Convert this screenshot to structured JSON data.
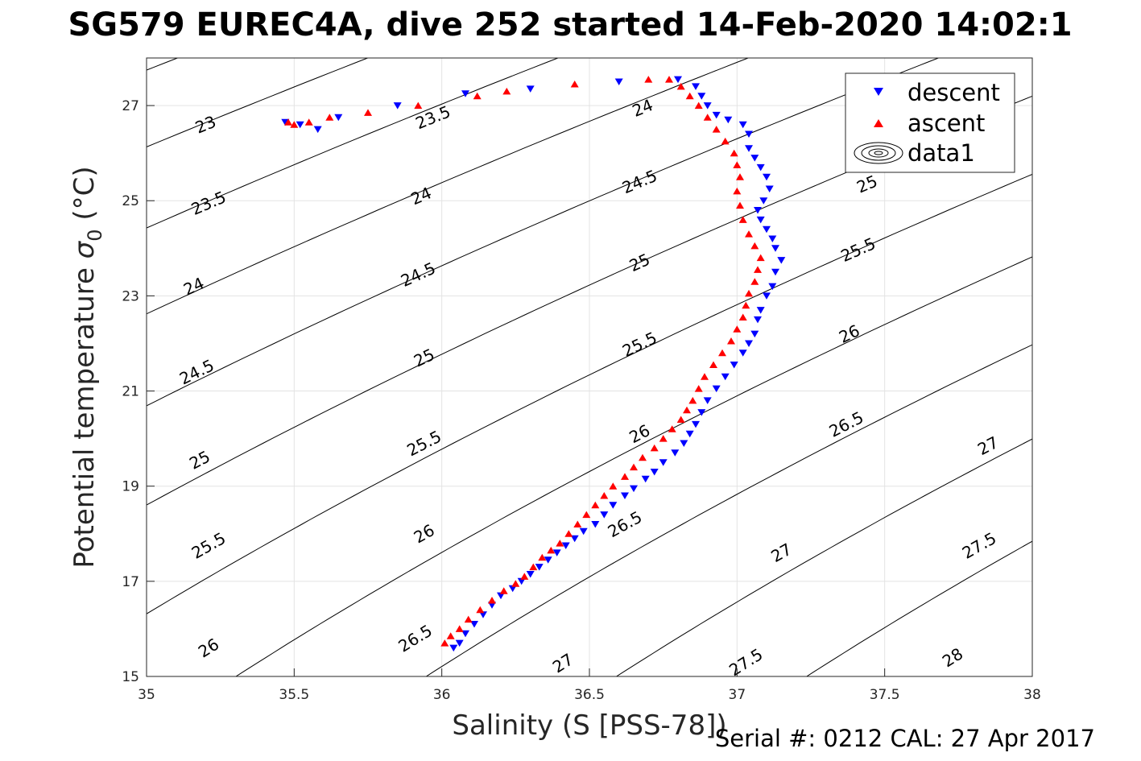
{
  "chart_data": {
    "type": "scatter",
    "title": "SG579 EUREC4A, dive 252 started 14-Feb-2020 14:02:1",
    "xlabel": "Salinity (S [PSS-78])",
    "ylabel_main": "Potential temperature ",
    "ylabel_sigma": "σ",
    "ylabel_sub": "0",
    "ylabel_unit": " (°C)",
    "footer": "Serial #: 0212  CAL: 27 Apr 2017",
    "xlim": [
      35,
      38
    ],
    "ylim": [
      15,
      28
    ],
    "grid": true,
    "x_ticks": [
      35,
      35.5,
      36,
      36.5,
      37,
      37.5,
      38
    ],
    "y_ticks": [
      15,
      17,
      19,
      21,
      23,
      25,
      27
    ],
    "x_tick_labels": [
      "35",
      "35.5",
      "36",
      "36.5",
      "37",
      "37.5",
      "38"
    ],
    "y_tick_labels": [
      "15",
      "17",
      "19",
      "21",
      "23",
      "25",
      "27"
    ],
    "legend": {
      "placement": "top-right",
      "entries": [
        "descent",
        "ascent",
        "data1"
      ]
    },
    "series": [
      {
        "name": "descent",
        "marker": "triangle-down",
        "color": "#0000ff",
        "points": [
          [
            36.04,
            15.6
          ],
          [
            36.06,
            15.7
          ],
          [
            36.08,
            15.9
          ],
          [
            36.11,
            16.1
          ],
          [
            36.14,
            16.3
          ],
          [
            36.17,
            16.5
          ],
          [
            36.2,
            16.7
          ],
          [
            36.24,
            16.85
          ],
          [
            36.27,
            17.0
          ],
          [
            36.3,
            17.15
          ],
          [
            36.33,
            17.3
          ],
          [
            36.36,
            17.45
          ],
          [
            36.39,
            17.6
          ],
          [
            36.42,
            17.75
          ],
          [
            36.45,
            17.9
          ],
          [
            36.48,
            18.05
          ],
          [
            36.52,
            18.2
          ],
          [
            36.55,
            18.4
          ],
          [
            36.58,
            18.6
          ],
          [
            36.62,
            18.8
          ],
          [
            36.65,
            18.95
          ],
          [
            36.69,
            19.15
          ],
          [
            36.72,
            19.3
          ],
          [
            36.75,
            19.5
          ],
          [
            36.79,
            19.7
          ],
          [
            36.82,
            19.9
          ],
          [
            36.84,
            20.1
          ],
          [
            36.86,
            20.3
          ],
          [
            36.88,
            20.55
          ],
          [
            36.9,
            20.8
          ],
          [
            36.93,
            21.05
          ],
          [
            36.96,
            21.3
          ],
          [
            36.99,
            21.55
          ],
          [
            37.02,
            21.8
          ],
          [
            37.04,
            22.0
          ],
          [
            37.06,
            22.2
          ],
          [
            37.07,
            22.5
          ],
          [
            37.08,
            22.7
          ],
          [
            37.1,
            23.0
          ],
          [
            37.12,
            23.2
          ],
          [
            37.13,
            23.5
          ],
          [
            37.15,
            23.75
          ],
          [
            37.13,
            24.0
          ],
          [
            37.12,
            24.2
          ],
          [
            37.1,
            24.4
          ],
          [
            37.08,
            24.6
          ],
          [
            37.07,
            24.8
          ],
          [
            37.09,
            25.0
          ],
          [
            37.11,
            25.25
          ],
          [
            37.1,
            25.5
          ],
          [
            37.08,
            25.7
          ],
          [
            37.06,
            25.9
          ],
          [
            37.04,
            26.1
          ],
          [
            37.04,
            26.4
          ],
          [
            37.02,
            26.6
          ],
          [
            36.97,
            26.7
          ],
          [
            36.93,
            26.8
          ],
          [
            36.9,
            27.0
          ],
          [
            36.88,
            27.2
          ],
          [
            36.86,
            27.4
          ],
          [
            36.8,
            27.55
          ],
          [
            36.6,
            27.5
          ],
          [
            36.3,
            27.35
          ],
          [
            36.08,
            27.25
          ],
          [
            35.85,
            27.0
          ],
          [
            35.65,
            26.75
          ],
          [
            35.58,
            26.5
          ],
          [
            35.52,
            26.6
          ],
          [
            35.47,
            26.65
          ]
        ]
      },
      {
        "name": "ascent",
        "marker": "triangle-up",
        "color": "#ff0000",
        "points": [
          [
            36.01,
            15.7
          ],
          [
            36.03,
            15.85
          ],
          [
            36.06,
            16.0
          ],
          [
            36.09,
            16.2
          ],
          [
            36.13,
            16.4
          ],
          [
            36.17,
            16.6
          ],
          [
            36.21,
            16.8
          ],
          [
            36.25,
            16.95
          ],
          [
            36.28,
            17.1
          ],
          [
            36.31,
            17.3
          ],
          [
            36.34,
            17.5
          ],
          [
            36.37,
            17.65
          ],
          [
            36.4,
            17.8
          ],
          [
            36.43,
            18.0
          ],
          [
            36.46,
            18.2
          ],
          [
            36.49,
            18.4
          ],
          [
            36.52,
            18.6
          ],
          [
            36.55,
            18.8
          ],
          [
            36.58,
            19.0
          ],
          [
            36.62,
            19.2
          ],
          [
            36.65,
            19.4
          ],
          [
            36.68,
            19.6
          ],
          [
            36.72,
            19.8
          ],
          [
            36.75,
            20.0
          ],
          [
            36.78,
            20.2
          ],
          [
            36.81,
            20.4
          ],
          [
            36.83,
            20.6
          ],
          [
            36.85,
            20.8
          ],
          [
            36.87,
            21.05
          ],
          [
            36.89,
            21.3
          ],
          [
            36.92,
            21.55
          ],
          [
            36.95,
            21.8
          ],
          [
            36.98,
            22.05
          ],
          [
            37.0,
            22.3
          ],
          [
            37.02,
            22.55
          ],
          [
            37.03,
            22.8
          ],
          [
            37.04,
            23.05
          ],
          [
            37.06,
            23.3
          ],
          [
            37.07,
            23.55
          ],
          [
            37.08,
            23.8
          ],
          [
            37.06,
            24.05
          ],
          [
            37.04,
            24.3
          ],
          [
            37.02,
            24.6
          ],
          [
            37.01,
            24.9
          ],
          [
            37.0,
            25.2
          ],
          [
            37.01,
            25.5
          ],
          [
            37.0,
            25.75
          ],
          [
            36.99,
            26.0
          ],
          [
            36.96,
            26.25
          ],
          [
            36.93,
            26.5
          ],
          [
            36.9,
            26.75
          ],
          [
            36.87,
            27.0
          ],
          [
            36.84,
            27.2
          ],
          [
            36.81,
            27.4
          ],
          [
            36.77,
            27.55
          ],
          [
            36.7,
            27.55
          ],
          [
            36.45,
            27.45
          ],
          [
            36.22,
            27.3
          ],
          [
            36.12,
            27.2
          ],
          [
            35.92,
            27.0
          ],
          [
            35.75,
            26.85
          ],
          [
            35.62,
            26.75
          ],
          [
            35.55,
            26.65
          ],
          [
            35.5,
            26.6
          ],
          [
            35.48,
            26.65
          ]
        ]
      }
    ],
    "density_contours": {
      "color": "#000000",
      "levels": [
        23,
        23.5,
        24,
        24.5,
        25,
        25.5,
        26,
        26.5,
        27,
        27.5,
        28
      ]
    },
    "contour_labels": [
      {
        "text": "23",
        "s": 35.2,
        "t": 26.6
      },
      {
        "text": "23.5",
        "s": 35.21,
        "t": 24.95
      },
      {
        "text": "24",
        "s": 35.16,
        "t": 23.2
      },
      {
        "text": "24.5",
        "s": 35.17,
        "t": 21.4
      },
      {
        "text": "25",
        "s": 35.18,
        "t": 19.55
      },
      {
        "text": "25.5",
        "s": 35.21,
        "t": 17.75
      },
      {
        "text": "26",
        "s": 35.21,
        "t": 15.6
      },
      {
        "text": "23.5",
        "s": 35.97,
        "t": 26.75
      },
      {
        "text": "24",
        "s": 35.93,
        "t": 25.1
      },
      {
        "text": "24.5",
        "s": 35.92,
        "t": 23.45
      },
      {
        "text": "25",
        "s": 35.94,
        "t": 21.7
      },
      {
        "text": "25.5",
        "s": 35.94,
        "t": 19.9
      },
      {
        "text": "26",
        "s": 35.94,
        "t": 18.0
      },
      {
        "text": "26.5",
        "s": 35.91,
        "t": 15.8
      },
      {
        "text": "24",
        "s": 36.68,
        "t": 26.95
      },
      {
        "text": "24.5",
        "s": 36.67,
        "t": 25.4
      },
      {
        "text": "25",
        "s": 36.67,
        "t": 23.7
      },
      {
        "text": "25.5",
        "s": 36.67,
        "t": 21.98
      },
      {
        "text": "26",
        "s": 36.67,
        "t": 20.1
      },
      {
        "text": "26.5",
        "s": 36.62,
        "t": 18.2
      },
      {
        "text": "27",
        "s": 36.41,
        "t": 15.28
      },
      {
        "text": "25",
        "s": 37.44,
        "t": 25.35
      },
      {
        "text": "25.5",
        "s": 37.41,
        "t": 23.97
      },
      {
        "text": "26",
        "s": 37.38,
        "t": 22.2
      },
      {
        "text": "26.5",
        "s": 37.37,
        "t": 20.3
      },
      {
        "text": "27",
        "s": 37.15,
        "t": 17.6
      },
      {
        "text": "27.5",
        "s": 37.03,
        "t": 15.3
      },
      {
        "text": "27",
        "s": 37.85,
        "t": 19.85
      },
      {
        "text": "27.5",
        "s": 37.82,
        "t": 17.75
      },
      {
        "text": "28",
        "s": 37.73,
        "t": 15.4
      }
    ]
  }
}
